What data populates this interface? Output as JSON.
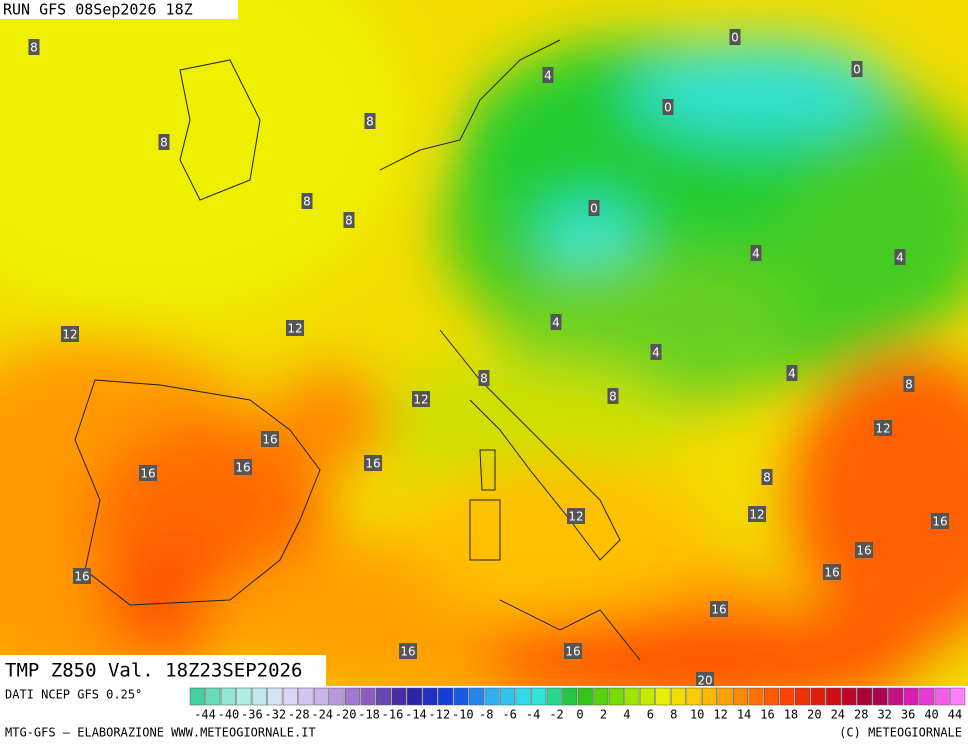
{
  "header": {
    "run": "RUN GFS 08Sep2026 18Z"
  },
  "map": {
    "contour_labels": [
      8,
      8,
      8,
      4,
      0,
      0,
      0,
      8,
      8,
      0,
      4,
      4,
      12,
      12,
      4,
      4,
      4,
      8,
      8,
      12,
      8,
      12,
      16,
      16,
      16,
      16,
      8,
      12,
      12,
      16,
      16,
      16,
      16,
      16,
      16,
      16,
      20
    ]
  },
  "footer": {
    "field": "TMP Z850 Val. 18Z23SEP2026",
    "source": "DATI NCEP GFS 0.25°",
    "credit": "MTG-GFS — ELABORAZIONE WWW.METEOGIORNALE.IT",
    "copyright": "(C) METEOGIORNALE",
    "scale_labels": [
      -44,
      -40,
      -36,
      -32,
      -28,
      -24,
      -20,
      -18,
      -16,
      -14,
      -12,
      -10,
      -8,
      -6,
      -4,
      -2,
      0,
      2,
      4,
      6,
      8,
      10,
      12,
      14,
      16,
      18,
      20,
      24,
      28,
      32,
      36,
      40,
      44
    ]
  }
}
